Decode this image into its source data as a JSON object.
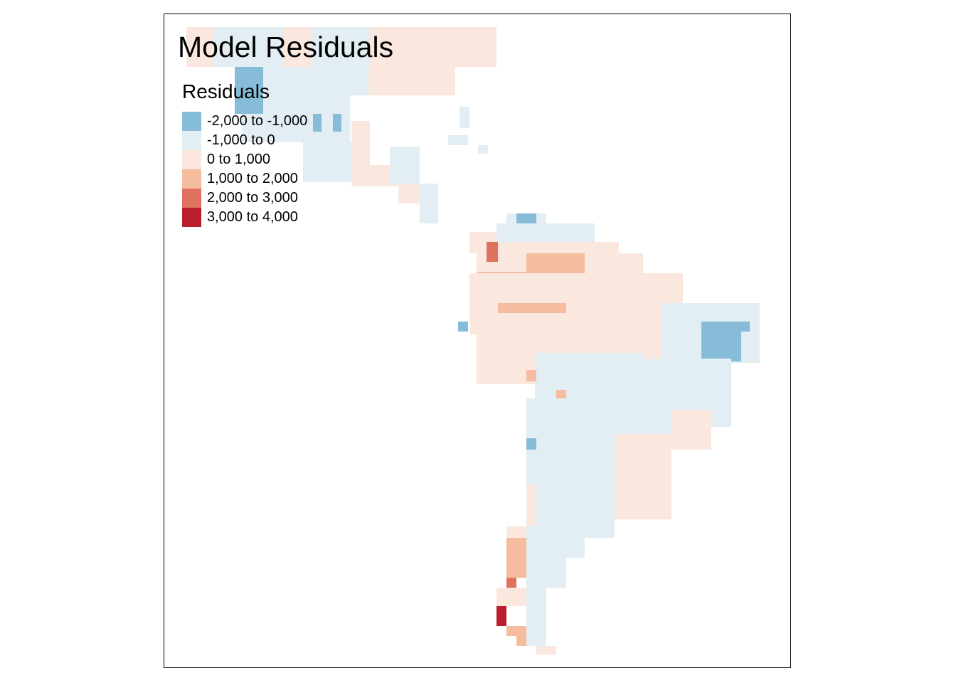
{
  "title": "Model Residuals",
  "legend": {
    "title": "Residuals",
    "items": [
      {
        "label": "-2,000 to -1,000",
        "color": "#86BCD8"
      },
      {
        "label": "-1,000 to 0",
        "color": "#E2EEF3"
      },
      {
        "label": "0 to 1,000",
        "color": "#FAE8DF"
      },
      {
        "label": "1,000 to 2,000",
        "color": "#F5BCA0"
      },
      {
        "label": "2,000 to 3,000",
        "color": "#DE725E"
      },
      {
        "label": "3,000 to 4,000",
        "color": "#B71F2E"
      }
    ]
  },
  "map_data": {
    "region": "Americas (Central & South America, southern North America)",
    "type": "raster-choropleth",
    "variable": "Residuals",
    "classes": [
      -2000,
      -1000,
      0,
      1000,
      2000,
      3000,
      4000
    ]
  }
}
